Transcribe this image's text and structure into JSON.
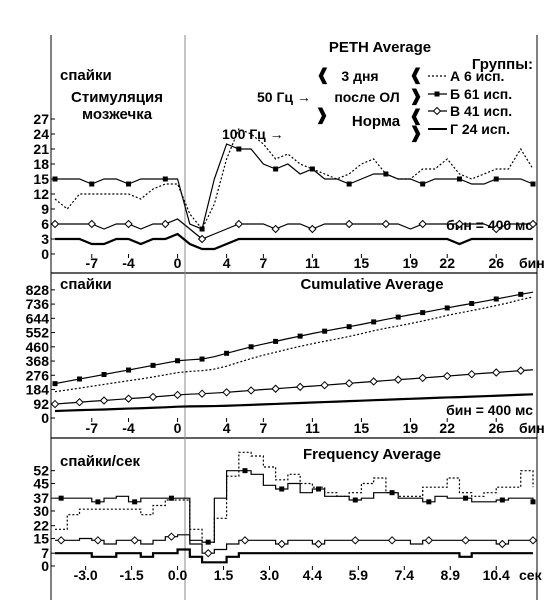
{
  "chart_data": [
    {
      "type": "line",
      "title": "PETH Average",
      "ylabel": "спайки",
      "annotation_left": [
        "Стимуляция",
        "мозжечка"
      ],
      "bin_label": "бин = 400 мс",
      "xunit": "бин",
      "xticks": [
        -7,
        -4,
        0,
        4,
        7,
        11,
        15,
        19,
        22,
        26
      ],
      "xlim": [
        -10,
        29
      ],
      "yticks": [
        0,
        3,
        6,
        9,
        12,
        15,
        18,
        21,
        24,
        27
      ],
      "ylim": [
        0,
        28
      ],
      "legend": {
        "title": "Группы:",
        "labels": [
          "А   6 исп.",
          "Б 61 исп.",
          "В 41 исп.",
          "Г 24 исп."
        ],
        "condition_labels": [
          "3 дня",
          "после ОЛ",
          "Норма"
        ],
        "stim_labels": [
          "50 Гц →",
          "100 Гц →"
        ]
      },
      "x": [
        -10,
        -9,
        -8,
        -7,
        -6,
        -5,
        -4,
        -3,
        -2,
        -1,
        0,
        1,
        2,
        3,
        4,
        5,
        6,
        7,
        8,
        9,
        10,
        11,
        12,
        13,
        14,
        15,
        16,
        17,
        18,
        19,
        20,
        21,
        22,
        23,
        24,
        25,
        26,
        27,
        28,
        29
      ],
      "series": [
        {
          "name": "А",
          "style": "dotted",
          "values": [
            11,
            9,
            12,
            12,
            12,
            12,
            12,
            11,
            13,
            14,
            14,
            8,
            5,
            10,
            19,
            25,
            24,
            22,
            19,
            20,
            18,
            17,
            16,
            15,
            16,
            18,
            19,
            16,
            15,
            15,
            17,
            17,
            19,
            16,
            15,
            16,
            17,
            17,
            21,
            17
          ]
        },
        {
          "name": "Б",
          "style": "square",
          "values": [
            15,
            15,
            15,
            14,
            15,
            15,
            14,
            15,
            15,
            15,
            15,
            6,
            5,
            15,
            22,
            21,
            21,
            18,
            17,
            18,
            16,
            17,
            15,
            15,
            14,
            15,
            16,
            16,
            15,
            15,
            14,
            15,
            15,
            15,
            14,
            14,
            15,
            15,
            15,
            14
          ]
        },
        {
          "name": "В",
          "style": "diamond",
          "values": [
            6,
            6,
            6,
            6,
            5,
            6,
            6,
            5,
            6,
            6,
            7,
            5,
            3,
            4,
            5,
            6,
            6,
            6,
            5,
            6,
            6,
            5,
            6,
            6,
            6,
            6,
            6,
            6,
            6,
            5,
            6,
            6,
            6,
            6,
            6,
            6,
            5,
            6,
            6,
            6
          ]
        },
        {
          "name": "Г",
          "style": "solid",
          "values": [
            3,
            3,
            3,
            2,
            2,
            3,
            3,
            2,
            3,
            3,
            4,
            2,
            1,
            1,
            2,
            3,
            3,
            3,
            3,
            3,
            3,
            3,
            3,
            3,
            3,
            3,
            3,
            3,
            3,
            3,
            3,
            3,
            3,
            2,
            3,
            3,
            3,
            3,
            3,
            3
          ]
        }
      ]
    },
    {
      "type": "line",
      "title": "Cumulative Average",
      "ylabel": "спайки",
      "bin_label": "бин = 400 мс",
      "xunit": "бин",
      "xticks": [
        -7,
        -4,
        0,
        4,
        7,
        11,
        15,
        19,
        22,
        26
      ],
      "xlim": [
        -10,
        29
      ],
      "yticks": [
        0,
        92,
        184,
        276,
        368,
        460,
        552,
        644,
        736,
        828
      ],
      "ylim": [
        0,
        840
      ],
      "x": [
        -10,
        -9,
        -8,
        -7,
        -6,
        -5,
        -4,
        -3,
        -2,
        -1,
        0,
        1,
        2,
        3,
        4,
        5,
        6,
        7,
        8,
        9,
        10,
        11,
        12,
        13,
        14,
        15,
        16,
        17,
        18,
        19,
        20,
        21,
        22,
        23,
        24,
        25,
        26,
        27,
        28,
        29
      ],
      "series": [
        {
          "name": "А",
          "style": "dotted",
          "values": [
            170,
            181,
            193,
            205,
            217,
            229,
            241,
            252,
            265,
            279,
            293,
            301,
            306,
            316,
            335,
            360,
            384,
            406,
            425,
            445,
            463,
            480,
            496,
            511,
            527,
            545,
            564,
            580,
            595,
            610,
            627,
            644,
            663,
            679,
            694,
            710,
            727,
            744,
            765,
            782
          ]
        },
        {
          "name": "Б",
          "style": "square",
          "values": [
            222,
            237,
            252,
            266,
            281,
            296,
            310,
            325,
            340,
            355,
            370,
            376,
            381,
            396,
            418,
            439,
            460,
            478,
            495,
            513,
            529,
            546,
            561,
            576,
            590,
            605,
            621,
            637,
            652,
            667,
            681,
            696,
            711,
            726,
            740,
            754,
            769,
            784,
            799,
            813
          ]
        },
        {
          "name": "В",
          "style": "diamond",
          "values": [
            90,
            96,
            102,
            108,
            113,
            119,
            125,
            130,
            136,
            142,
            149,
            154,
            157,
            161,
            166,
            172,
            178,
            184,
            189,
            195,
            201,
            206,
            212,
            218,
            224,
            230,
            236,
            242,
            248,
            253,
            259,
            265,
            271,
            277,
            283,
            289,
            294,
            300,
            306,
            312
          ]
        },
        {
          "name": "Г",
          "style": "solid",
          "values": [
            45,
            48,
            51,
            53,
            55,
            58,
            61,
            63,
            66,
            69,
            73,
            75,
            76,
            77,
            79,
            82,
            85,
            88,
            91,
            94,
            97,
            100,
            103,
            106,
            109,
            112,
            115,
            118,
            121,
            124,
            127,
            130,
            133,
            135,
            138,
            141,
            144,
            147,
            150,
            153
          ]
        }
      ]
    },
    {
      "type": "line",
      "title": "Frequency Average",
      "ylabel": "спайки/сек",
      "xunit": "сек",
      "xticks": [
        "-3.0",
        "-1.5",
        "0.0",
        "1.5",
        "3.0",
        "4.4",
        "5.9",
        "7.4",
        "8.9",
        "10.4"
      ],
      "xtick_values": [
        -3.0,
        -1.5,
        0.0,
        1.5,
        3.0,
        4.4,
        5.9,
        7.4,
        8.9,
        10.4
      ],
      "xlim": [
        -4.0,
        11.6
      ],
      "yticks": [
        0,
        7,
        15,
        22,
        30,
        37,
        45,
        52
      ],
      "ylim": [
        0,
        60
      ],
      "x": [
        -4.0,
        -3.6,
        -3.2,
        -2.8,
        -2.4,
        -2.0,
        -1.6,
        -1.2,
        -0.8,
        -0.4,
        0.0,
        0.4,
        0.8,
        1.2,
        1.6,
        2.0,
        2.4,
        2.8,
        3.2,
        3.6,
        4.0,
        4.4,
        4.8,
        5.2,
        5.6,
        6.0,
        6.4,
        6.8,
        7.2,
        7.6,
        8.0,
        8.4,
        8.8,
        9.2,
        9.6,
        10.0,
        10.4,
        10.8,
        11.2,
        11.6
      ],
      "series": [
        {
          "name": "А",
          "style": "dotted",
          "values": [
            20,
            28,
            31,
            31,
            31,
            31,
            31,
            28,
            33,
            36,
            36,
            20,
            13,
            26,
            49,
            62,
            60,
            54,
            47,
            50,
            45,
            43,
            40,
            38,
            40,
            45,
            48,
            40,
            38,
            38,
            43,
            43,
            48,
            40,
            38,
            40,
            43,
            43,
            52,
            43
          ]
        },
        {
          "name": "Б",
          "style": "square",
          "values": [
            37,
            37,
            37,
            35,
            37,
            38,
            35,
            37,
            37,
            37,
            37,
            14,
            13,
            37,
            52,
            52,
            50,
            44,
            42,
            45,
            40,
            42,
            38,
            38,
            36,
            37,
            40,
            40,
            37,
            37,
            35,
            38,
            37,
            37,
            35,
            35,
            36,
            37,
            37,
            35
          ]
        },
        {
          "name": "В",
          "style": "diamond",
          "values": [
            14,
            14,
            15,
            14,
            12,
            14,
            14,
            12,
            14,
            16,
            17,
            12,
            7,
            9,
            12,
            14,
            14,
            14,
            12,
            14,
            14,
            12,
            14,
            14,
            14,
            14,
            14,
            14,
            14,
            12,
            14,
            14,
            14,
            14,
            14,
            14,
            12,
            14,
            14,
            14
          ]
        },
        {
          "name": "Г",
          "style": "solid",
          "values": [
            7,
            7,
            7,
            5,
            5,
            7,
            7,
            5,
            7,
            7,
            9,
            5,
            2,
            2,
            5,
            7,
            7,
            7,
            7,
            7,
            7,
            7,
            7,
            7,
            7,
            7,
            7,
            7,
            7,
            7,
            7,
            7,
            7,
            5,
            7,
            7,
            7,
            7,
            7,
            7
          ]
        }
      ]
    }
  ]
}
